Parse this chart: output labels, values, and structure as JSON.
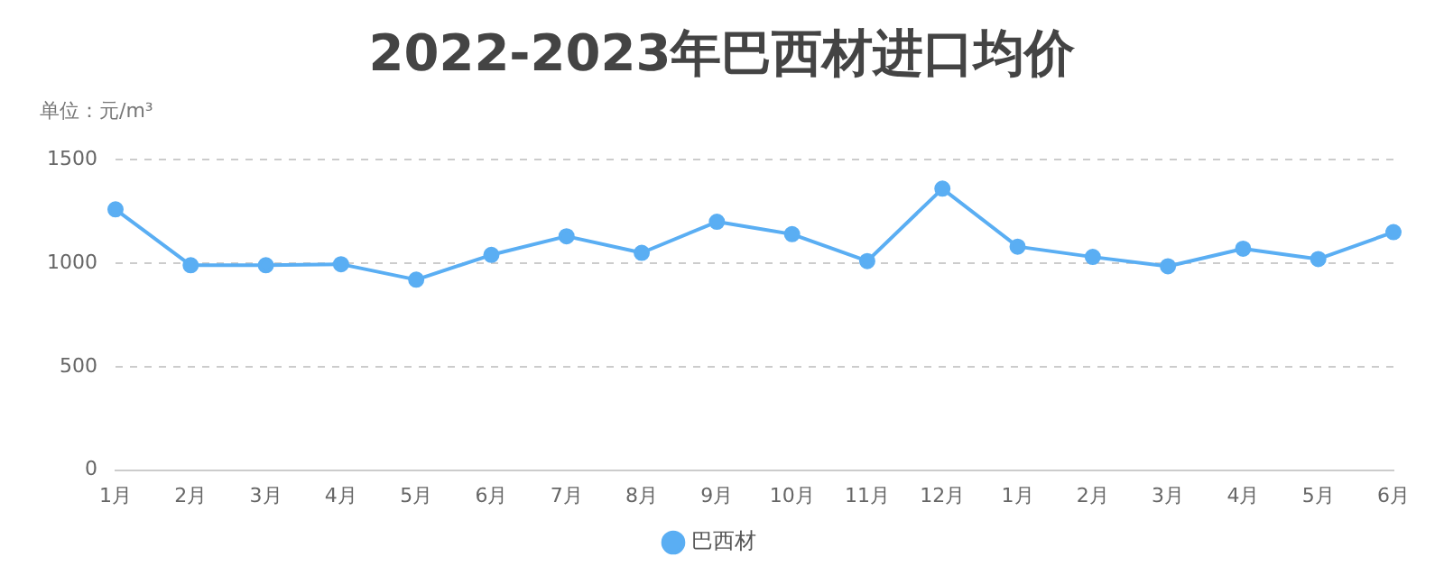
{
  "chart_data": {
    "type": "line",
    "title": "2022-2023年巴西材进口均价",
    "subtitle": "单位：元/m³",
    "categories": [
      "1月",
      "2月",
      "3月",
      "4月",
      "5月",
      "6月",
      "7月",
      "8月",
      "9月",
      "10月",
      "11月",
      "12月",
      "1月",
      "2月",
      "3月",
      "4月",
      "5月",
      "6月"
    ],
    "series": [
      {
        "name": "巴西材",
        "color": "#5aaef3",
        "values": [
          1260,
          990,
          990,
          995,
          920,
          1040,
          1130,
          1050,
          1200,
          1140,
          1010,
          1360,
          1080,
          1030,
          985,
          1070,
          1020,
          1150
        ]
      }
    ],
    "ylim": [
      0,
      1500
    ],
    "yticks": [
      0,
      500,
      1000,
      1500
    ],
    "grid": "y",
    "legend": "bottom",
    "marker": "circle",
    "line_style": "solid"
  }
}
